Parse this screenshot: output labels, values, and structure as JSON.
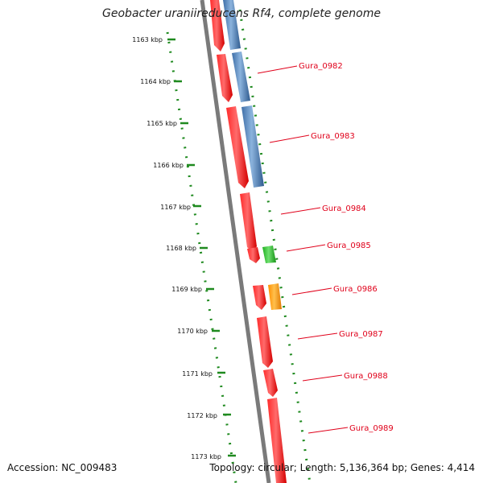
{
  "title": "Geobacter uraniireducens Rf4, complete genome",
  "footer": {
    "accession": "Accession: NC_009483",
    "summary": "Topology: circular; Length: 5,136,364 bp; Genes: 4,414"
  },
  "colors": {
    "background": "#ffffff",
    "backbone": "#7a7a7a",
    "scale_dots": "#1f8a1f",
    "gene_red": "#ee1111",
    "gene_blue": "#4f81bd",
    "gene_green": "#2bbd2b",
    "gene_orange": "#ff9900",
    "label_text": "#e0001a"
  },
  "scale_ticks": [
    "1163 kbp",
    "1164 kbp",
    "1165 kbp",
    "1166 kbp",
    "1167 kbp",
    "1168 kbp",
    "1169 kbp",
    "1170 kbp",
    "1171 kbp",
    "1172 kbp",
    "1173 kbp"
  ],
  "gene_labels": [
    "Gura_0982",
    "Gura_0983",
    "Gura_0984",
    "Gura_0985",
    "Gura_0986",
    "Gura_0987",
    "Gura_0988",
    "Gura_0989"
  ]
}
